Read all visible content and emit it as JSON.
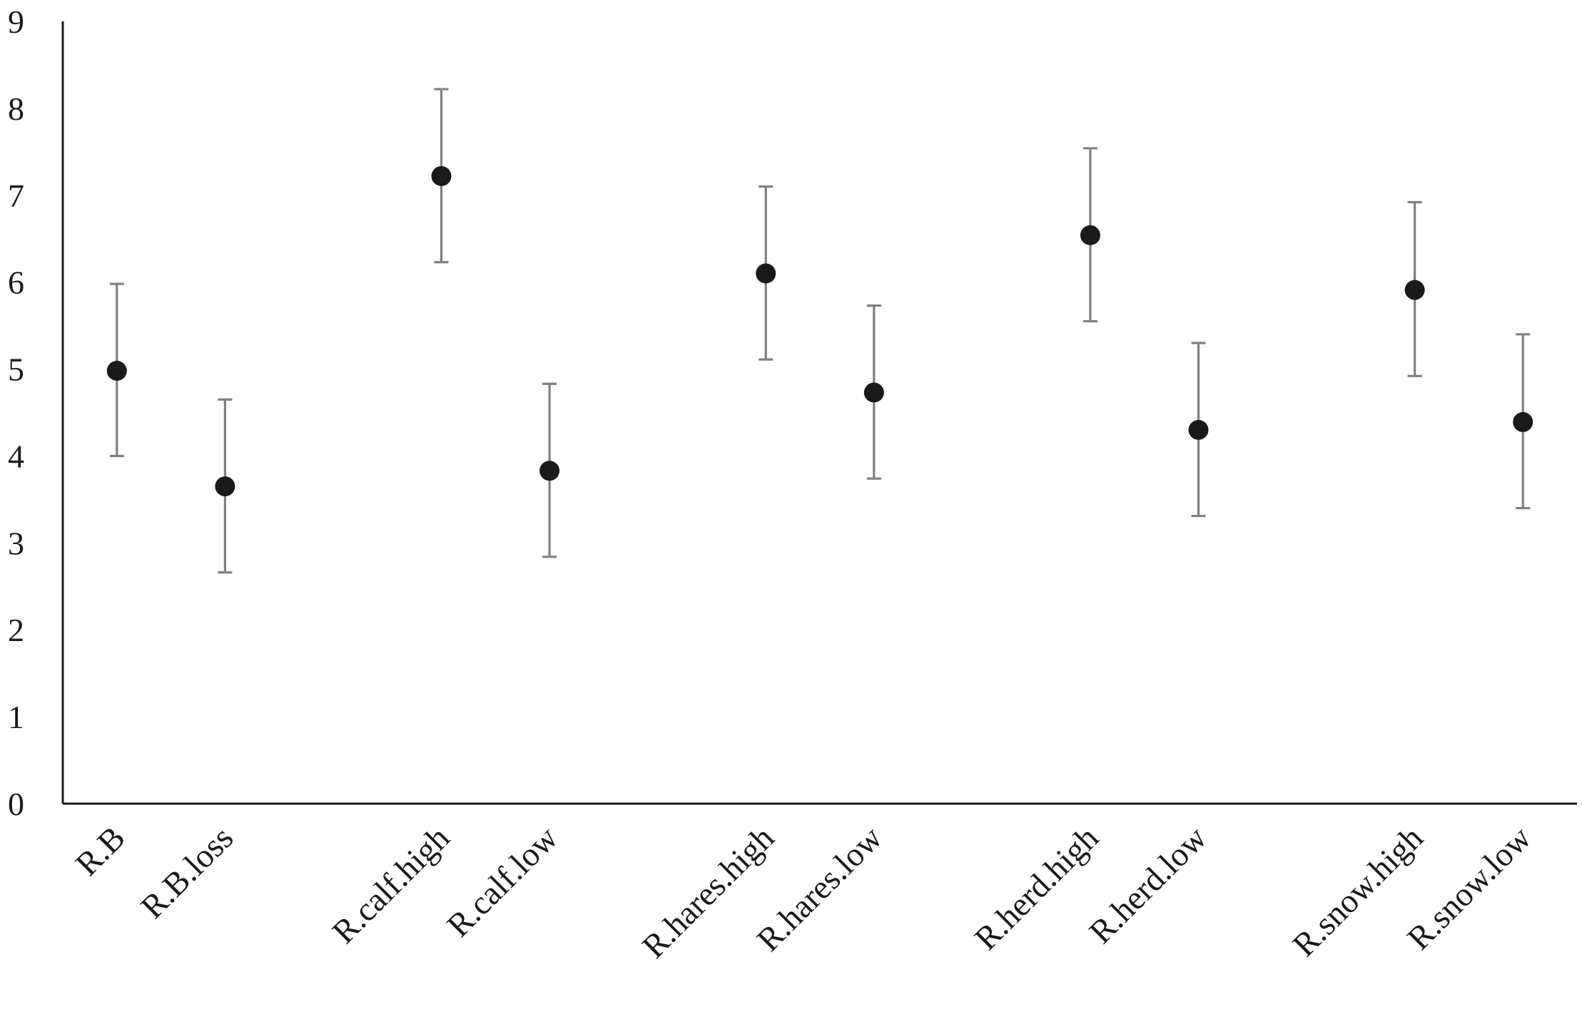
{
  "chart_data": {
    "type": "scatter",
    "title": "",
    "xlabel": "",
    "ylabel": "",
    "ylim": [
      0,
      9
    ],
    "yticks": [
      0,
      1,
      2,
      3,
      4,
      5,
      6,
      7,
      8,
      9
    ],
    "grid": false,
    "legend": "none",
    "colors": {
      "point": "#1a1a1a",
      "error_bar": "#808080",
      "axis": "#1a1a1a"
    },
    "x_positions": [
      1,
      2,
      4,
      5,
      7,
      8,
      10,
      11,
      13,
      14
    ],
    "xlim": [
      0.5,
      14.5
    ],
    "categories": [
      "R.B",
      "R.B.loss",
      "R.calf.high",
      "R.calf.low",
      "R.hares.high",
      "R.hares.low",
      "R.herd.high",
      "R.herd.low",
      "R.snow.high",
      "R.snow.low"
    ],
    "series": [
      {
        "values": [
          4.98,
          3.65,
          7.22,
          3.83,
          6.1,
          4.73,
          6.54,
          4.3,
          5.91,
          4.39
        ],
        "error_low": [
          4.0,
          2.66,
          6.23,
          2.84,
          5.11,
          3.74,
          5.55,
          3.31,
          4.92,
          3.4
        ],
        "error_high": [
          5.98,
          4.65,
          8.22,
          4.83,
          7.1,
          5.73,
          7.54,
          5.3,
          6.92,
          5.4
        ]
      }
    ]
  }
}
